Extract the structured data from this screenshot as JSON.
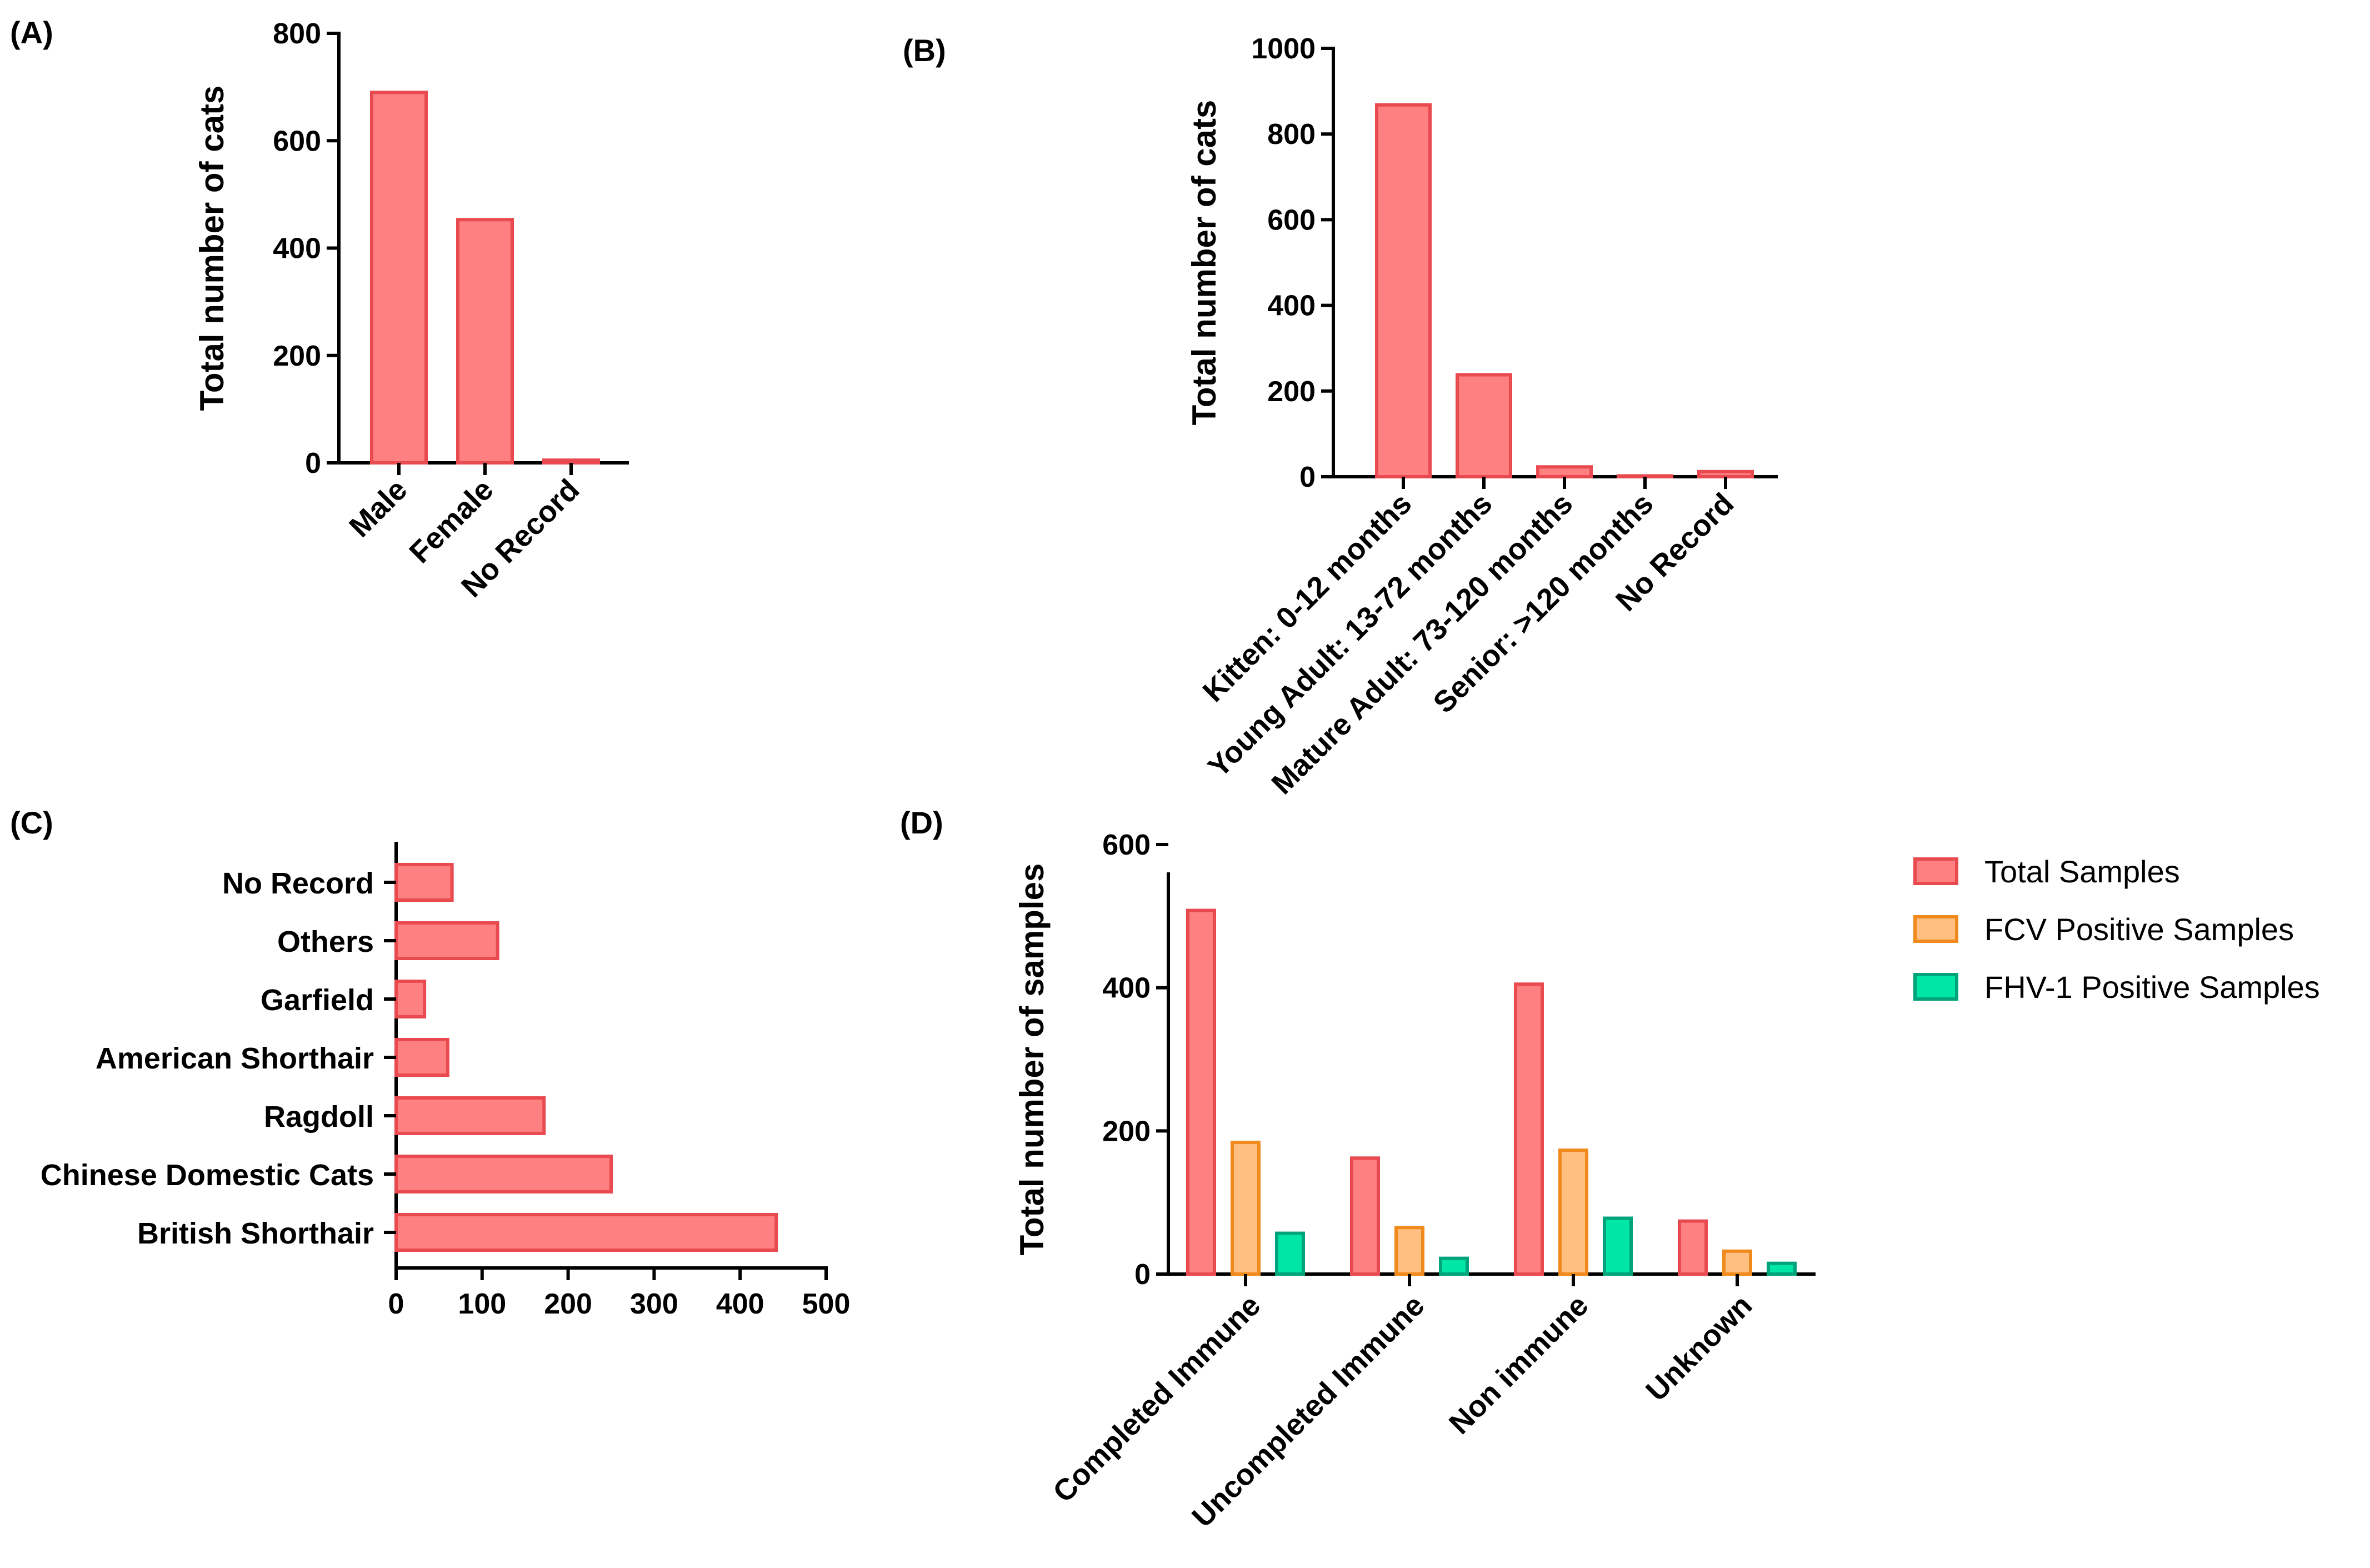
{
  "panels": {
    "A": "(A)",
    "B": "(B)",
    "C": "(C)",
    "D": "(D)"
  },
  "colors": {
    "total_fill": "#ff8080",
    "total_stroke": "#e84a4f",
    "fcv_fill": "#ffbf80",
    "fcv_stroke": "#f08a1c",
    "fhv_fill": "#00e6a5",
    "fhv_stroke": "#00a37a"
  },
  "chart_data": [
    {
      "id": "A",
      "type": "bar",
      "categories": [
        "Male",
        "Female",
        "No Record"
      ],
      "values": [
        690,
        453,
        5
      ],
      "ylabel": "Total number of cats",
      "ylim": [
        0,
        800
      ],
      "yticks": [
        0,
        200,
        400,
        600,
        800
      ]
    },
    {
      "id": "B",
      "type": "bar",
      "categories": [
        "Kitten: 0-12 months",
        "Young Adult: 13-72 months",
        "Mature Adult: 73-120 months",
        "Senior: >120 months",
        "No Record"
      ],
      "values": [
        868,
        238,
        23,
        2,
        12
      ],
      "ylabel": "Total number of cats",
      "ylim": [
        0,
        1000
      ],
      "yticks": [
        0,
        200,
        400,
        600,
        800,
        1000
      ]
    },
    {
      "id": "C",
      "type": "bar",
      "orientation": "horizontal",
      "categories": [
        "No Record",
        "Others",
        "Garfield",
        "American Shorthair",
        "Ragdoll",
        "Chinese Domestic Cats",
        "British Shorthair"
      ],
      "values": [
        65,
        118,
        33,
        60,
        172,
        250,
        442
      ],
      "xlim": [
        0,
        500
      ],
      "xticks": [
        0,
        100,
        200,
        300,
        400,
        500
      ]
    },
    {
      "id": "D",
      "type": "bar",
      "categories": [
        "Completed Immune",
        "Uncompleted Immune",
        "Non immune",
        "Unknown"
      ],
      "series": [
        {
          "name": "Total Samples",
          "values": [
            508,
            162,
            405,
            74
          ]
        },
        {
          "name": "FCV Positive Samples",
          "values": [
            184,
            65,
            173,
            32
          ]
        },
        {
          "name": "FHV-1 Positive Samples",
          "values": [
            57,
            22,
            78,
            15
          ]
        }
      ],
      "ylabel": "Total number of samples",
      "ylim": [
        0,
        600
      ],
      "yticks": [
        0,
        200,
        400,
        600
      ],
      "legend": "right"
    }
  ]
}
